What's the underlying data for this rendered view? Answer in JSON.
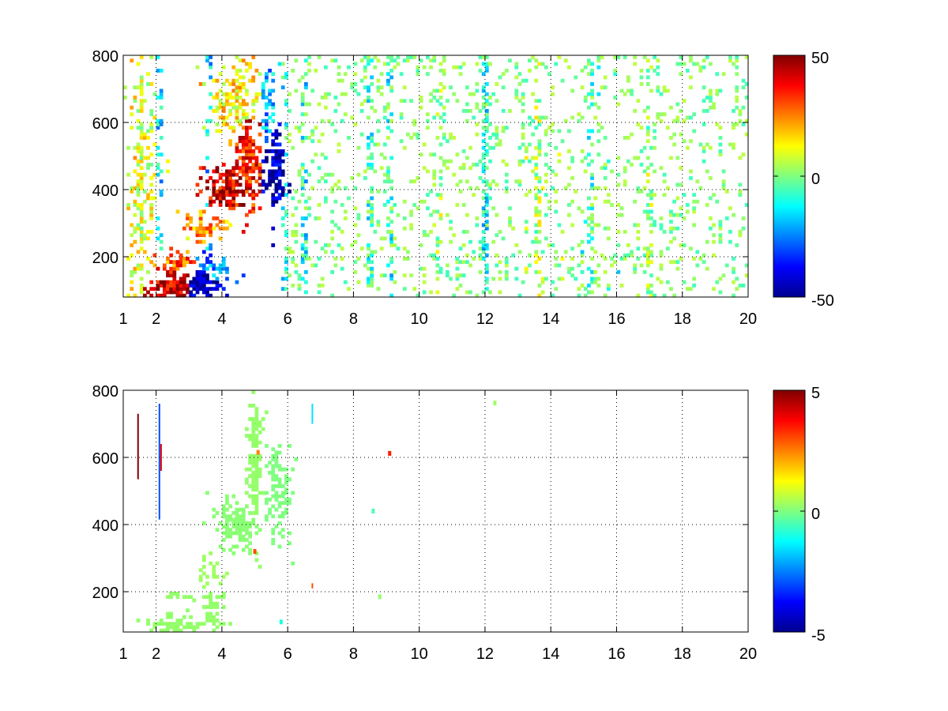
{
  "chart_data": [
    {
      "type": "heatmap",
      "title": "",
      "xlabel": "",
      "ylabel": "",
      "xlim": [
        1,
        20
      ],
      "ylim": [
        80,
        800
      ],
      "x_ticks": [
        "1",
        "2",
        "4",
        "6",
        "8",
        "10",
        "12",
        "14",
        "16",
        "18",
        "20"
      ],
      "y_ticks": [
        "200",
        "400",
        "600",
        "800"
      ],
      "grid": true,
      "colorbar": {
        "colormap": "jet",
        "min": -50,
        "max": 50,
        "ticks": [
          "50",
          "0",
          "-50"
        ]
      },
      "blobs": [
        {
          "x": 2.6,
          "y": 110,
          "dx": 0.7,
          "dy": 40,
          "v": 42,
          "w": 1.0
        },
        {
          "x": 3.3,
          "y": 115,
          "dx": 0.5,
          "dy": 45,
          "v": -45,
          "w": 0.9
        },
        {
          "x": 2.5,
          "y": 180,
          "dx": 0.6,
          "dy": 25,
          "v": 28,
          "w": 0.7
        },
        {
          "x": 3.8,
          "y": 170,
          "dx": 0.5,
          "dy": 35,
          "v": -25,
          "w": 0.7
        },
        {
          "x": 3.5,
          "y": 290,
          "dx": 0.6,
          "dy": 45,
          "v": 22,
          "w": 0.6
        },
        {
          "x": 4.2,
          "y": 400,
          "dx": 0.6,
          "dy": 60,
          "v": 40,
          "w": 0.95
        },
        {
          "x": 4.8,
          "y": 480,
          "dx": 0.35,
          "dy": 120,
          "v": 35,
          "w": 0.9
        },
        {
          "x": 4.4,
          "y": 680,
          "dx": 0.7,
          "dy": 110,
          "v": 14,
          "w": 0.6
        },
        {
          "x": 5.6,
          "y": 460,
          "dx": 0.3,
          "dy": 100,
          "v": -45,
          "w": 0.9
        },
        {
          "x": 5.4,
          "y": 650,
          "dx": 0.2,
          "dy": 130,
          "v": -20,
          "w": 0.6
        },
        {
          "x": 1.6,
          "y": 450,
          "dx": 0.4,
          "dy": 300,
          "v": 10,
          "w": 0.35
        }
      ],
      "columns": [
        {
          "x": 1.3,
          "v": 12,
          "w": 0.5
        },
        {
          "x": 1.55,
          "v": 8,
          "w": 0.5
        },
        {
          "x": 2.1,
          "v": -15,
          "w": 0.5
        },
        {
          "x": 3.6,
          "v": -18,
          "w": 0.4
        },
        {
          "x": 5.9,
          "v": -10,
          "w": 0.4
        },
        {
          "x": 6.5,
          "v": -12,
          "w": 0.4
        },
        {
          "x": 8.5,
          "v": -8,
          "w": 0.5
        },
        {
          "x": 9.1,
          "v": -12,
          "w": 0.5
        },
        {
          "x": 10.6,
          "v": 3,
          "w": 0.4
        },
        {
          "x": 12.0,
          "v": -12,
          "w": 0.8
        },
        {
          "x": 13.6,
          "v": 4,
          "w": 0.5
        },
        {
          "x": 15.2,
          "v": -6,
          "w": 0.5
        },
        {
          "x": 17.0,
          "v": 3,
          "w": 0.4
        }
      ],
      "noise": {
        "x_from": 6,
        "density": 0.12,
        "values": [
          -6,
          -3,
          2,
          4,
          6
        ]
      }
    },
    {
      "type": "heatmap",
      "title": "",
      "xlabel": "",
      "ylabel": "",
      "xlim": [
        1,
        20
      ],
      "ylim": [
        80,
        800
      ],
      "x_ticks": [
        "1",
        "2",
        "4",
        "6",
        "8",
        "10",
        "12",
        "14",
        "16",
        "18",
        "20"
      ],
      "y_ticks": [
        "200",
        "400",
        "600",
        "800"
      ],
      "grid": true,
      "colorbar": {
        "colormap": "jet",
        "min": -5,
        "max": 5,
        "ticks": [
          "5",
          "0",
          "-5"
        ]
      },
      "blobs": [
        {
          "x": 2.8,
          "y": 100,
          "dx": 0.8,
          "dy": 25,
          "v": 0.2,
          "w": 0.9
        },
        {
          "x": 3.7,
          "y": 130,
          "dx": 0.25,
          "dy": 70,
          "v": 0.2,
          "w": 0.7
        },
        {
          "x": 2.8,
          "y": 185,
          "dx": 0.6,
          "dy": 10,
          "v": 0.2,
          "w": 0.5
        },
        {
          "x": 4.5,
          "y": 400,
          "dx": 0.55,
          "dy": 60,
          "v": 0.1,
          "w": 0.9
        },
        {
          "x": 5.0,
          "y": 560,
          "dx": 0.2,
          "dy": 180,
          "v": 0.2,
          "w": 0.8
        },
        {
          "x": 5.7,
          "y": 480,
          "dx": 0.3,
          "dy": 120,
          "v": 0.0,
          "w": 0.7
        },
        {
          "x": 3.6,
          "y": 260,
          "dx": 0.4,
          "dy": 60,
          "v": 0.3,
          "w": 0.4
        }
      ],
      "lines": [
        {
          "x": 1.45,
          "y0": 535,
          "y1": 730,
          "v": 5
        },
        {
          "x": 2.1,
          "y0": 415,
          "y1": 760,
          "v": -3
        },
        {
          "x": 2.15,
          "y0": 560,
          "y1": 640,
          "v": 4
        },
        {
          "x": 6.75,
          "y0": 700,
          "y1": 760,
          "v": -1.5
        },
        {
          "x": 6.75,
          "y0": 210,
          "y1": 225,
          "v": 3
        }
      ],
      "spots": [
        {
          "x": 9.1,
          "y": 612,
          "v": 3.5
        },
        {
          "x": 5.0,
          "y": 320,
          "v": 3
        },
        {
          "x": 5.1,
          "y": 615,
          "v": 2.5
        },
        {
          "x": 5.8,
          "y": 110,
          "v": -1
        },
        {
          "x": 12.3,
          "y": 762,
          "v": 0.3
        },
        {
          "x": 8.8,
          "y": 185,
          "v": 0.2
        },
        {
          "x": 8.6,
          "y": 440,
          "v": -0.5
        }
      ],
      "noise": {
        "x_from": 0,
        "density": 0,
        "values": []
      }
    }
  ]
}
